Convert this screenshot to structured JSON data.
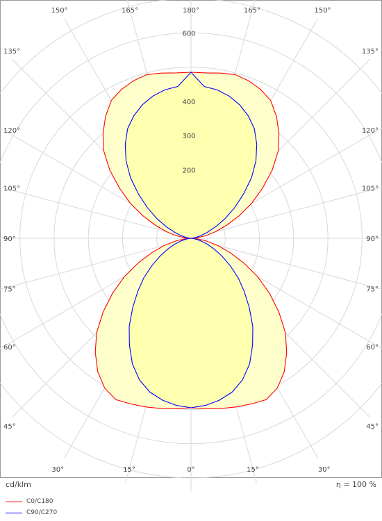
{
  "chart_data": {
    "type": "polar",
    "unit_label": "cd/klm",
    "efficiency_label": "η = 100 %",
    "radial_max": 700,
    "radial_ticks": [
      200,
      300,
      400,
      600
    ],
    "angle_ticks": [
      {
        "deg": 150,
        "label": "150°"
      },
      {
        "deg": 165,
        "label": "165°"
      },
      {
        "deg": 180,
        "label": "180°"
      },
      {
        "deg": -165,
        "label": "165°"
      },
      {
        "deg": -150,
        "label": "150°"
      },
      {
        "deg": 135,
        "label": "135°"
      },
      {
        "deg": -135,
        "label": "135°"
      },
      {
        "deg": 120,
        "label": "120°"
      },
      {
        "deg": -120,
        "label": "120°"
      },
      {
        "deg": 105,
        "label": "105°"
      },
      {
        "deg": -105,
        "label": "105°"
      },
      {
        "deg": 90,
        "label": "90°"
      },
      {
        "deg": -90,
        "label": "90°"
      },
      {
        "deg": 75,
        "label": "75°"
      },
      {
        "deg": -75,
        "label": "75°"
      },
      {
        "deg": 60,
        "label": "60°"
      },
      {
        "deg": -60,
        "label": "60°"
      },
      {
        "deg": 45,
        "label": "45°"
      },
      {
        "deg": -45,
        "label": "45°"
      },
      {
        "deg": 30,
        "label": "30°"
      },
      {
        "deg": -30,
        "label": "30°"
      },
      {
        "deg": 15,
        "label": "15°"
      },
      {
        "deg": -15,
        "label": "15°"
      },
      {
        "deg": 0,
        "label": "0°"
      }
    ],
    "angles": [
      0,
      5,
      10,
      15,
      20,
      25,
      30,
      35,
      40,
      45,
      50,
      55,
      60,
      65,
      70,
      75,
      80,
      85,
      90,
      95,
      100,
      105,
      110,
      115,
      120,
      125,
      130,
      135,
      140,
      145,
      150,
      155,
      160,
      165,
      170,
      175,
      180
    ],
    "series": [
      {
        "name": "C0/C180",
        "color": "#ff0000",
        "fill": "#ffffcc",
        "values": [
          495,
          500,
          505,
          510,
          515,
          520,
          505,
          475,
          435,
          390,
          335,
          280,
          225,
          170,
          120,
          80,
          45,
          20,
          0,
          20,
          45,
          75,
          110,
          155,
          205,
          255,
          310,
          360,
          400,
          435,
          465,
          480,
          490,
          495,
          490,
          485,
          485
        ]
      },
      {
        "name": "C90/C270",
        "color": "#0000ff",
        "fill": "#ffff99",
        "values": [
          495,
          490,
          480,
          465,
          440,
          405,
          360,
          315,
          265,
          220,
          180,
          140,
          105,
          75,
          50,
          30,
          15,
          5,
          0,
          5,
          15,
          30,
          50,
          80,
          115,
          155,
          200,
          250,
          295,
          335,
          370,
          395,
          415,
          430,
          440,
          445,
          485
        ]
      }
    ]
  }
}
